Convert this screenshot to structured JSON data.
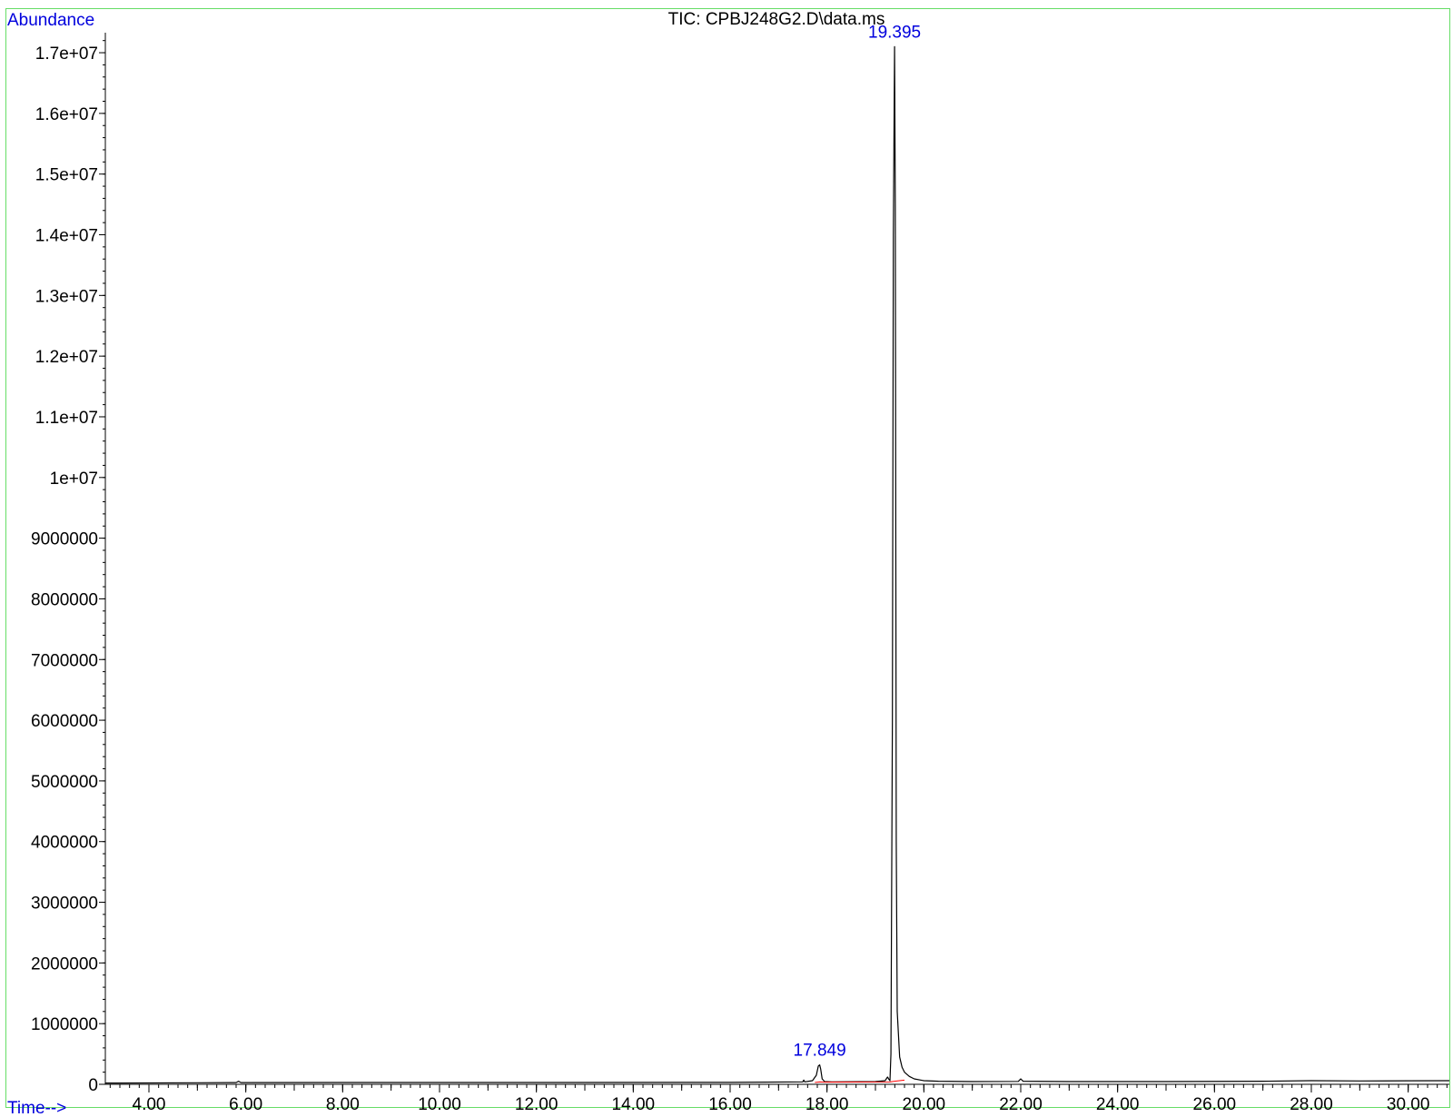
{
  "chart_data": {
    "type": "line",
    "title": "TIC: CPBJ248G2.D\\data.ms",
    "ylabel": "Abundance",
    "xlabel": "Time-->",
    "xlim": [
      3.1,
      30.85
    ],
    "ylim": [
      0,
      17300000
    ],
    "x_ticks": [
      4,
      6,
      8,
      10,
      12,
      14,
      16,
      18,
      20,
      22,
      24,
      26,
      28,
      30
    ],
    "x_tick_labels": [
      "4.00",
      "6.00",
      "8.00",
      "10.00",
      "12.00",
      "14.00",
      "16.00",
      "18.00",
      "20.00",
      "22.00",
      "24.00",
      "26.00",
      "28.00",
      "30.00"
    ],
    "y_ticks": [
      0,
      1000000,
      2000000,
      3000000,
      4000000,
      5000000,
      6000000,
      7000000,
      8000000,
      9000000,
      10000000,
      11000000,
      12000000,
      13000000,
      14000000,
      15000000,
      16000000,
      17000000
    ],
    "y_tick_labels": [
      "0",
      "1000000",
      "2000000",
      "3000000",
      "4000000",
      "5000000",
      "6000000",
      "7000000",
      "8000000",
      "9000000",
      "1e+07",
      "1.1e+07",
      "1.2e+07",
      "1.3e+07",
      "1.4e+07",
      "1.5e+07",
      "1.6e+07",
      "1.7e+07"
    ],
    "series": [
      {
        "color": "#000000",
        "x": [
          3.1,
          5.0,
          5.8,
          5.85,
          5.9,
          8.0,
          12.0,
          16.0,
          17.5,
          17.52,
          17.54,
          17.7,
          17.78,
          17.82,
          17.849,
          17.87,
          17.9,
          17.95,
          18.1,
          19.0,
          19.2,
          19.25,
          19.28,
          19.3,
          19.32,
          19.35,
          19.37,
          19.395,
          19.41,
          19.43,
          19.45,
          19.5,
          19.55,
          19.6,
          19.7,
          19.8,
          20.0,
          20.3,
          21.0,
          21.95,
          22.0,
          22.05,
          23.0,
          25.0,
          27.0,
          28.0,
          29.0,
          30.0,
          30.85
        ],
        "y": [
          20000,
          25000,
          28000,
          50000,
          28000,
          30000,
          30000,
          32000,
          40000,
          70000,
          40000,
          60000,
          150000,
          300000,
          320000,
          250000,
          90000,
          45000,
          40000,
          45000,
          60000,
          120000,
          80000,
          60000,
          500000,
          6000000,
          14000000,
          17100000,
          14500000,
          4000000,
          1200000,
          450000,
          280000,
          200000,
          130000,
          90000,
          60000,
          50000,
          45000,
          48000,
          90000,
          50000,
          45000,
          45000,
          50000,
          60000,
          55000,
          58000,
          60000
        ]
      },
      {
        "color": "#ff0000",
        "x": [
          17.75,
          17.849,
          17.95,
          19.3,
          19.395,
          19.6
        ],
        "y": [
          30000,
          40000,
          35000,
          40000,
          50000,
          70000
        ]
      }
    ],
    "annotations": [
      {
        "x": 19.395,
        "y": 17100000,
        "text": "19.395"
      },
      {
        "x": 17.849,
        "y": 320000,
        "text": "17.849"
      }
    ],
    "colors": {
      "frame": "#66dd66",
      "labels": "#0000dd",
      "axis": "#000000",
      "ticks_text": "#000000"
    },
    "grid": false,
    "legend": "none"
  }
}
